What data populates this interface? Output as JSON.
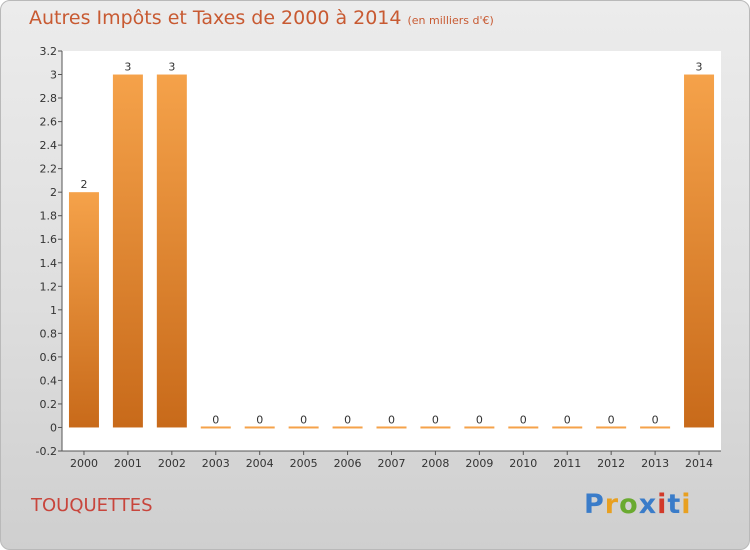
{
  "title": "Autres Impôts et Taxes de 2000 à 2014",
  "unit": "(en milliers d'€)",
  "town": "TOUQUETTES",
  "logo": {
    "text": "Proxiti",
    "colors": [
      "#3a7cc9",
      "#e8a020",
      "#6aaa30",
      "#3a7cc9",
      "#d23a2a",
      "#3a7cc9",
      "#e8a020"
    ]
  },
  "colors": {
    "bar_light": "#f5a24a",
    "bar_dark": "#c86a1a",
    "title": "#c85a32",
    "town": "#c8453c"
  },
  "chart_data": {
    "type": "bar",
    "categories": [
      "2000",
      "2001",
      "2002",
      "2003",
      "2004",
      "2005",
      "2006",
      "2007",
      "2008",
      "2009",
      "2010",
      "2011",
      "2012",
      "2013",
      "2014"
    ],
    "values": [
      2,
      3,
      3,
      0,
      0,
      0,
      0,
      0,
      0,
      0,
      0,
      0,
      0,
      0,
      3
    ],
    "data_labels": [
      "2",
      "3",
      "3",
      "0",
      "0",
      "0",
      "0",
      "0",
      "0",
      "0",
      "0",
      "0",
      "0",
      "0",
      "3"
    ],
    "ylim": [
      -0.2,
      3.2
    ],
    "yticks": [
      "-0.2",
      "0",
      "0.2",
      "0.4",
      "0.6",
      "0.8",
      "1",
      "1.2",
      "1.4",
      "1.6",
      "1.8",
      "2",
      "2.2",
      "2.4",
      "2.6",
      "2.8",
      "3",
      "3.2"
    ],
    "xlabel": "",
    "ylabel": "",
    "grid": false
  }
}
